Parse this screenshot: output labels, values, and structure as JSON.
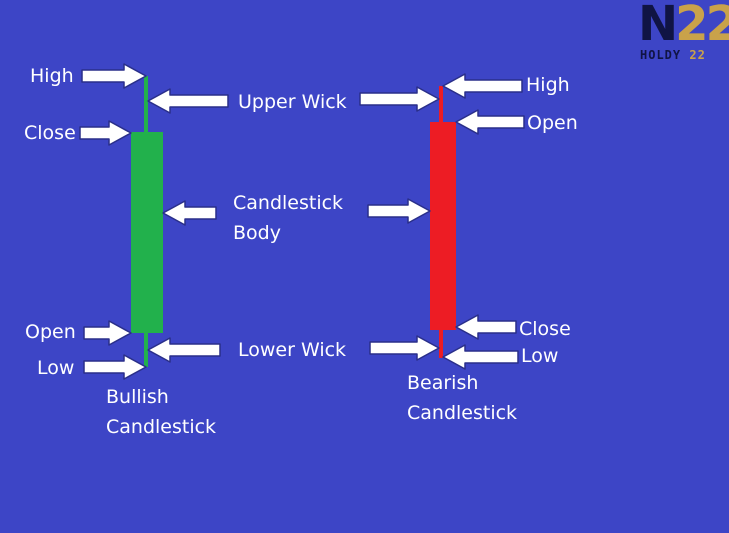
{
  "colors": {
    "background": "#3d45c6",
    "bullish": "#22b14c",
    "bearish": "#ed1c24",
    "arrow_fill": "#ffffff",
    "arrow_stroke": "#2a2f8a",
    "text": "#ffffff"
  },
  "logo": {
    "main_a": "N",
    "main_b": "22",
    "sub_a": "HOLDY",
    "sub_b": "22"
  },
  "bullish": {
    "high": "High",
    "close": "Close",
    "open": "Open",
    "low": "Low",
    "caption_line1": "Bullish",
    "caption_line2": "Candlestick"
  },
  "middle": {
    "upper_wick": "Upper Wick",
    "body_line1": "Candlestick",
    "body_line2": "Body",
    "lower_wick": "Lower Wick"
  },
  "bearish": {
    "high": "High",
    "open": "Open",
    "close": "Close",
    "low": "Low",
    "caption_line1": "Bearish",
    "caption_line2": "Candlestick"
  }
}
